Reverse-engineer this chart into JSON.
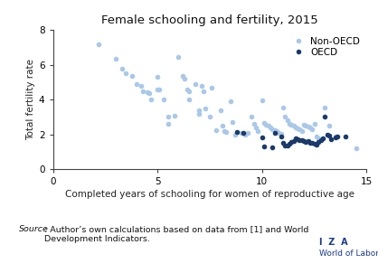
{
  "title": "Female schooling and fertility, 2015",
  "xlabel": "Completed years of schooling for women of reproductive age",
  "ylabel": "Total fertility rate",
  "xlim": [
    0,
    15
  ],
  "ylim": [
    0,
    8
  ],
  "xticks": [
    0,
    5,
    10,
    15
  ],
  "yticks": [
    0,
    2,
    4,
    6,
    8
  ],
  "non_oecd_color": "#aac8e8",
  "oecd_color": "#1a3a6b",
  "non_oecd_points": [
    [
      2.2,
      7.2
    ],
    [
      3.0,
      6.35
    ],
    [
      3.3,
      5.8
    ],
    [
      3.5,
      5.5
    ],
    [
      3.8,
      5.35
    ],
    [
      4.0,
      4.9
    ],
    [
      4.2,
      4.8
    ],
    [
      4.3,
      4.5
    ],
    [
      4.5,
      4.45
    ],
    [
      4.6,
      4.35
    ],
    [
      4.7,
      4.0
    ],
    [
      5.0,
      5.3
    ],
    [
      5.0,
      4.6
    ],
    [
      5.1,
      4.6
    ],
    [
      5.3,
      4.0
    ],
    [
      5.5,
      3.0
    ],
    [
      5.5,
      2.6
    ],
    [
      5.8,
      3.1
    ],
    [
      6.0,
      6.45
    ],
    [
      6.2,
      5.35
    ],
    [
      6.3,
      5.2
    ],
    [
      6.4,
      4.6
    ],
    [
      6.5,
      4.5
    ],
    [
      6.5,
      4.0
    ],
    [
      6.8,
      4.9
    ],
    [
      7.0,
      3.4
    ],
    [
      7.0,
      3.2
    ],
    [
      7.1,
      4.8
    ],
    [
      7.2,
      4.5
    ],
    [
      7.3,
      3.5
    ],
    [
      7.5,
      3.0
    ],
    [
      7.6,
      4.7
    ],
    [
      7.8,
      2.25
    ],
    [
      8.0,
      3.4
    ],
    [
      8.1,
      2.5
    ],
    [
      8.2,
      2.2
    ],
    [
      8.3,
      2.15
    ],
    [
      8.5,
      3.9
    ],
    [
      8.6,
      2.7
    ],
    [
      8.7,
      2.0
    ],
    [
      9.0,
      2.1
    ],
    [
      9.2,
      2.0
    ],
    [
      9.3,
      2.1
    ],
    [
      9.5,
      3.0
    ],
    [
      9.6,
      2.6
    ],
    [
      9.7,
      2.4
    ],
    [
      9.8,
      2.2
    ],
    [
      10.0,
      3.95
    ],
    [
      10.1,
      2.65
    ],
    [
      10.2,
      2.55
    ],
    [
      10.3,
      2.5
    ],
    [
      10.4,
      2.4
    ],
    [
      10.5,
      2.3
    ],
    [
      10.6,
      2.25
    ],
    [
      10.7,
      2.2
    ],
    [
      10.8,
      2.1
    ],
    [
      10.9,
      2.05
    ],
    [
      11.0,
      3.55
    ],
    [
      11.1,
      3.0
    ],
    [
      11.2,
      2.8
    ],
    [
      11.3,
      2.6
    ],
    [
      11.4,
      2.55
    ],
    [
      11.5,
      2.5
    ],
    [
      11.6,
      2.4
    ],
    [
      11.7,
      2.35
    ],
    [
      11.8,
      2.3
    ],
    [
      11.9,
      2.2
    ],
    [
      12.0,
      2.55
    ],
    [
      12.1,
      2.5
    ],
    [
      12.2,
      2.45
    ],
    [
      12.3,
      2.4
    ],
    [
      12.4,
      2.3
    ],
    [
      12.5,
      2.6
    ],
    [
      12.6,
      1.9
    ],
    [
      12.7,
      1.8
    ],
    [
      12.8,
      1.75
    ],
    [
      13.0,
      3.55
    ],
    [
      13.2,
      2.5
    ],
    [
      13.5,
      1.9
    ],
    [
      14.5,
      1.2
    ]
  ],
  "oecd_points": [
    [
      8.8,
      2.15
    ],
    [
      9.1,
      2.1
    ],
    [
      10.0,
      1.85
    ],
    [
      10.1,
      1.3
    ],
    [
      10.5,
      1.25
    ],
    [
      10.6,
      2.1
    ],
    [
      10.9,
      1.9
    ],
    [
      11.0,
      1.5
    ],
    [
      11.1,
      1.35
    ],
    [
      11.2,
      1.35
    ],
    [
      11.3,
      1.45
    ],
    [
      11.4,
      1.55
    ],
    [
      11.5,
      1.6
    ],
    [
      11.6,
      1.8
    ],
    [
      11.7,
      1.75
    ],
    [
      11.8,
      1.7
    ],
    [
      11.9,
      1.65
    ],
    [
      12.0,
      1.6
    ],
    [
      12.1,
      1.55
    ],
    [
      12.2,
      1.6
    ],
    [
      12.3,
      1.5
    ],
    [
      12.4,
      1.5
    ],
    [
      12.5,
      1.45
    ],
    [
      12.6,
      1.4
    ],
    [
      12.7,
      1.55
    ],
    [
      12.8,
      1.7
    ],
    [
      12.9,
      1.8
    ],
    [
      13.0,
      3.05
    ],
    [
      13.1,
      2.0
    ],
    [
      13.2,
      1.95
    ],
    [
      13.3,
      1.75
    ],
    [
      13.5,
      1.85
    ],
    [
      13.6,
      1.9
    ],
    [
      14.0,
      1.9
    ]
  ],
  "marker_size": 16,
  "border_color": "#2255aa",
  "bg_color": "#ffffff",
  "fig_bg_color": "#ffffff",
  "iza_color": "#1a3a8a",
  "source_italic": "Source",
  "source_rest": ": Author’s own calculations based on data from [1] and World\nDevelopment Indicators."
}
